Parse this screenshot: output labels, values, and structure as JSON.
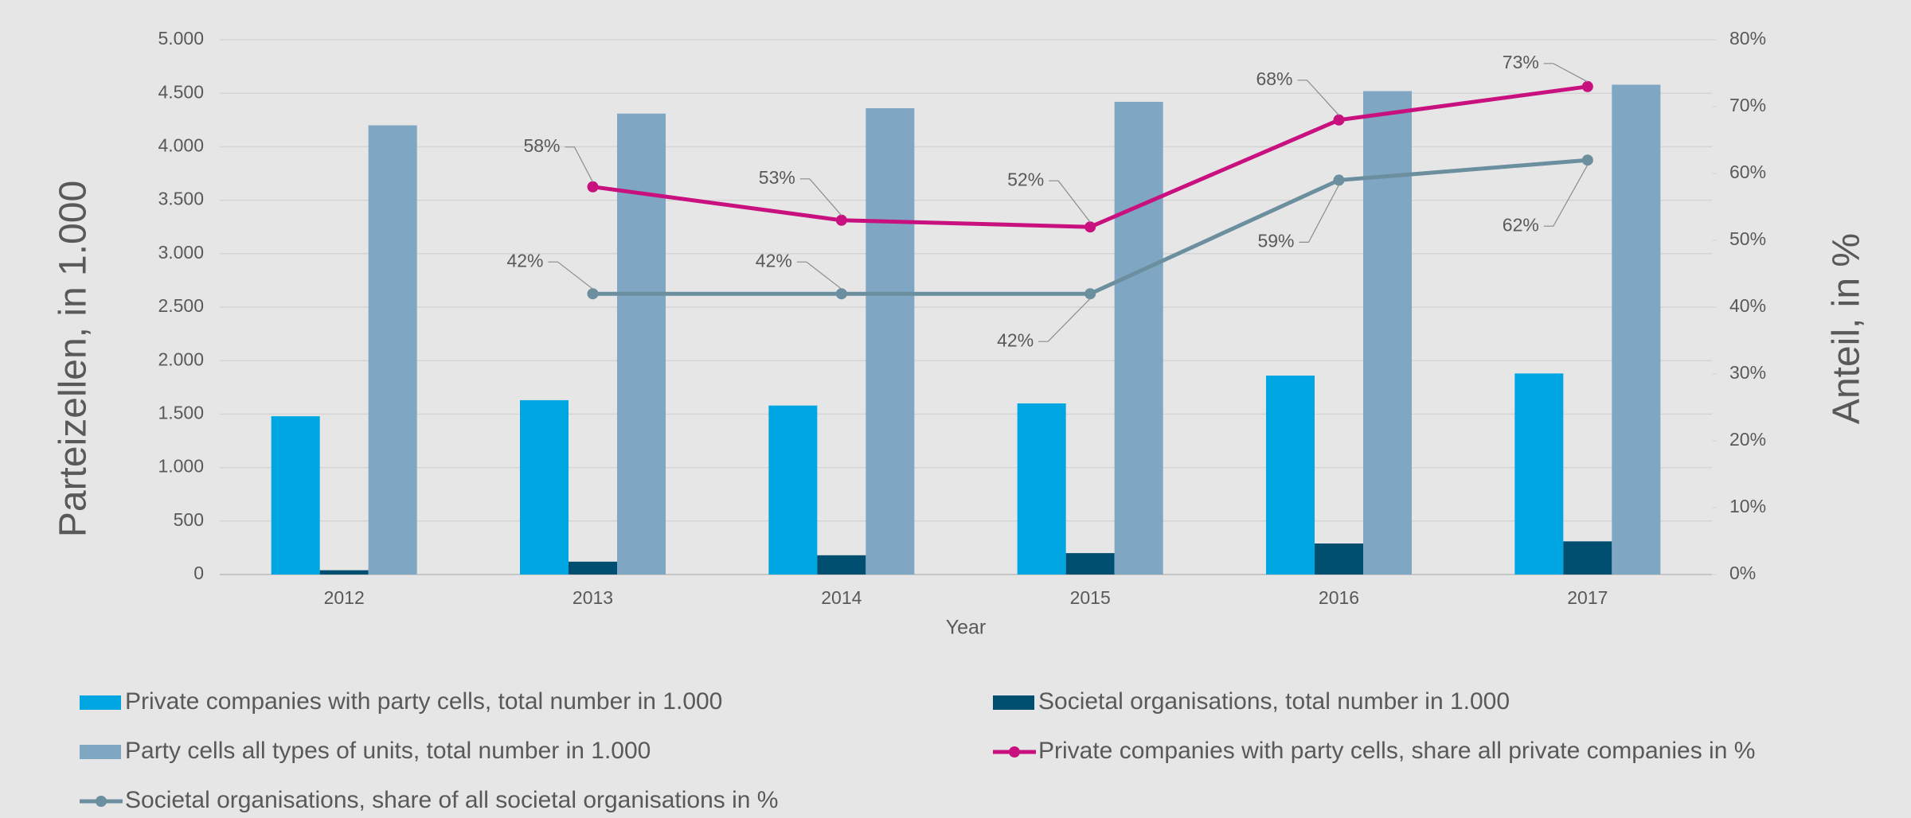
{
  "chart_data": {
    "type": "bar",
    "x_label": "Year",
    "y_label": "Parteizellen, in 1.000",
    "y2_label": "Anteil, in %",
    "categories": [
      "2012",
      "2013",
      "2014",
      "2015",
      "2016",
      "2017"
    ],
    "ylim": [
      0,
      5000
    ],
    "yticks": [
      0,
      500,
      {
        "value": 1000,
        "label": "1.000"
      },
      {
        "value": 1500,
        "label": "1.500"
      },
      {
        "value": 2000,
        "label": "2.000"
      },
      {
        "value": 2500,
        "label": "2.500"
      },
      {
        "value": 3000,
        "label": "3.000"
      },
      {
        "value": 3500,
        "label": "3.500"
      },
      {
        "value": 4000,
        "label": "4.000"
      },
      {
        "value": 4500,
        "label": "4.500"
      },
      {
        "value": 5000,
        "label": "5.000"
      }
    ],
    "y2lim": [
      0,
      80
    ],
    "y2ticks": [
      {
        "value": 0,
        "label": "0%"
      },
      {
        "value": 10,
        "label": "10%"
      },
      {
        "value": 20,
        "label": "20%"
      },
      {
        "value": 30,
        "label": "30%"
      },
      {
        "value": 40,
        "label": "40%"
      },
      {
        "value": 50,
        "label": "50%"
      },
      {
        "value": 60,
        "label": "60%"
      },
      {
        "value": 70,
        "label": "70%"
      },
      {
        "value": 80,
        "label": "80%"
      }
    ],
    "grid": true,
    "legend": "bottom",
    "series": [
      {
        "name": "Private companies with party cells, total number in 1.000",
        "type": "bar",
        "color": "#00a6e2",
        "values": [
          1480,
          1630,
          1580,
          1600,
          1860,
          1880
        ]
      },
      {
        "name": "Societal organisations, total number in 1.000",
        "type": "bar",
        "color": "#004f71",
        "values": [
          40,
          120,
          180,
          200,
          290,
          310
        ]
      },
      {
        "name": "Party cells all types of units,  total number in 1.000",
        "type": "bar",
        "color": "#7fa6c2",
        "values": [
          4200,
          4310,
          4360,
          4420,
          4520,
          4580
        ]
      },
      {
        "name": "Private companies with party cells, share all private companies in %",
        "type": "line",
        "axis": "y2",
        "color": "#c8117f",
        "values": [
          null,
          58,
          53,
          52,
          68,
          73
        ],
        "value_labels": [
          null,
          "58%",
          "53%",
          "52%",
          "68%",
          "73%"
        ]
      },
      {
        "name": "Societal organisations, share of all societal organisations in %",
        "type": "line",
        "axis": "y2",
        "color": "#6b8f9e",
        "values": [
          null,
          42,
          42,
          42,
          59,
          62
        ],
        "value_labels": [
          null,
          "42%",
          "42%",
          "42%",
          "59%",
          "62%"
        ]
      }
    ]
  }
}
